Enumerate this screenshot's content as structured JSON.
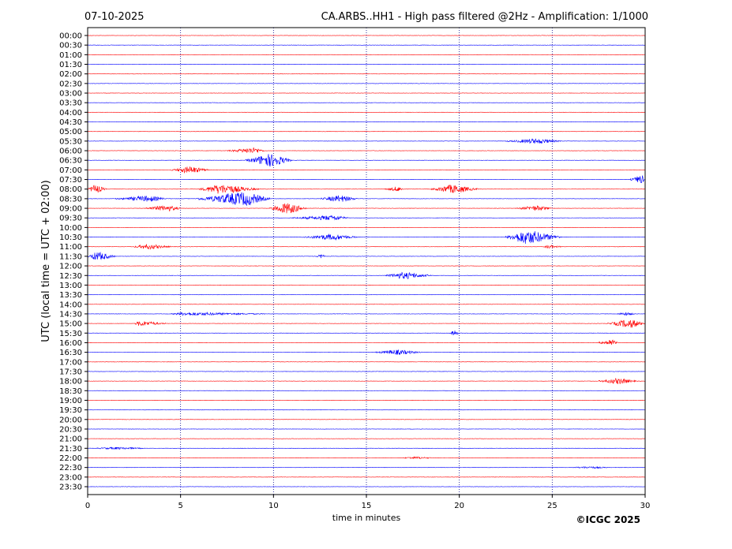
{
  "header": {
    "date": "07-10-2025",
    "title": "CA.ARBS..HH1 - High pass filtered @2Hz - Amplification: 1/1000"
  },
  "footer": {
    "copyright": "©ICGC 2025"
  },
  "colors": {
    "odd_trace": "#ff0000",
    "even_trace": "#0000ff",
    "grid": "#00008b",
    "frame": "#000000"
  },
  "chart_data": {
    "type": "line",
    "title": "CA.ARBS..HH1 - High pass filtered @2Hz - Amplification: 1/1000",
    "xlabel": "time in minutes",
    "ylabel": "UTC (local time = UTC + 02:00)",
    "xlim": [
      0,
      30
    ],
    "x_ticks": [
      0,
      5,
      10,
      15,
      20,
      25,
      30
    ],
    "x_tick_labels": [
      "0",
      "5",
      "10",
      "15",
      "20",
      "25",
      "30"
    ],
    "vertical_gridlines": [
      5,
      10,
      15,
      20,
      25
    ],
    "row_labels": [
      "00:00",
      "00:30",
      "01:00",
      "01:30",
      "02:00",
      "02:30",
      "03:00",
      "03:30",
      "04:00",
      "04:30",
      "05:00",
      "05:30",
      "06:00",
      "06:30",
      "07:00",
      "07:30",
      "08:00",
      "08:30",
      "09:00",
      "09:30",
      "10:00",
      "10:30",
      "11:00",
      "11:30",
      "12:00",
      "12:30",
      "13:00",
      "13:30",
      "14:00",
      "14:30",
      "15:00",
      "15:30",
      "16:00",
      "16:30",
      "17:00",
      "17:30",
      "18:00",
      "18:30",
      "19:00",
      "19:30",
      "20:00",
      "20:30",
      "21:00",
      "21:30",
      "22:00",
      "22:30",
      "23:00",
      "23:30"
    ],
    "row_colors": [
      "#ff0000",
      "#0000ff"
    ],
    "events": [
      {
        "row": 11,
        "start": 22.5,
        "end": 25.5,
        "peak": 24.2,
        "amp": 0.25
      },
      {
        "row": 12,
        "start": 7.5,
        "end": 9.5,
        "peak": 9.0,
        "amp": 0.3
      },
      {
        "row": 13,
        "start": 8.5,
        "end": 11.0,
        "peak": 9.8,
        "amp": 0.7
      },
      {
        "row": 14,
        "start": 4.5,
        "end": 6.5,
        "peak": 5.5,
        "amp": 0.35
      },
      {
        "row": 15,
        "start": 29.2,
        "end": 30.0,
        "peak": 29.8,
        "amp": 0.45
      },
      {
        "row": 16,
        "start": 0.0,
        "end": 1.0,
        "peak": 0.4,
        "amp": 0.45
      },
      {
        "row": 16,
        "start": 6.0,
        "end": 9.2,
        "peak": 7.1,
        "amp": 0.5
      },
      {
        "row": 16,
        "start": 16.0,
        "end": 17.0,
        "peak": 16.7,
        "amp": 0.25
      },
      {
        "row": 16,
        "start": 18.5,
        "end": 21.0,
        "peak": 19.6,
        "amp": 0.45
      },
      {
        "row": 17,
        "start": 1.5,
        "end": 4.2,
        "peak": 3.3,
        "amp": 0.3
      },
      {
        "row": 17,
        "start": 5.8,
        "end": 9.8,
        "peak": 8.5,
        "amp": 0.75
      },
      {
        "row": 17,
        "start": 12.5,
        "end": 14.5,
        "peak": 13.6,
        "amp": 0.35
      },
      {
        "row": 18,
        "start": 3.0,
        "end": 5.0,
        "peak": 4.3,
        "amp": 0.3
      },
      {
        "row": 18,
        "start": 9.8,
        "end": 11.8,
        "peak": 10.7,
        "amp": 0.6
      },
      {
        "row": 18,
        "start": 23.0,
        "end": 25.0,
        "peak": 24.2,
        "amp": 0.25
      },
      {
        "row": 19,
        "start": 11.0,
        "end": 14.0,
        "peak": 13.3,
        "amp": 0.25
      },
      {
        "row": 21,
        "start": 11.5,
        "end": 14.5,
        "peak": 13.2,
        "amp": 0.3
      },
      {
        "row": 21,
        "start": 22.5,
        "end": 25.5,
        "peak": 23.6,
        "amp": 0.75
      },
      {
        "row": 22,
        "start": 2.5,
        "end": 4.5,
        "peak": 3.2,
        "amp": 0.25
      },
      {
        "row": 22,
        "start": 24.5,
        "end": 25.5,
        "peak": 24.8,
        "amp": 0.15
      },
      {
        "row": 23,
        "start": 0.0,
        "end": 1.5,
        "peak": 0.5,
        "amp": 0.45
      },
      {
        "row": 23,
        "start": 12.3,
        "end": 12.8,
        "peak": 12.6,
        "amp": 0.2
      },
      {
        "row": 25,
        "start": 16.0,
        "end": 18.5,
        "peak": 17.0,
        "amp": 0.35
      },
      {
        "row": 29,
        "start": 4.5,
        "end": 9.5,
        "peak": 5.2,
        "amp": 0.15
      },
      {
        "row": 29,
        "start": 28.5,
        "end": 29.5,
        "peak": 28.9,
        "amp": 0.15
      },
      {
        "row": 30,
        "start": 2.5,
        "end": 4.2,
        "peak": 2.8,
        "amp": 0.25
      },
      {
        "row": 30,
        "start": 28.0,
        "end": 30.0,
        "peak": 29.2,
        "amp": 0.45
      },
      {
        "row": 31,
        "start": 19.5,
        "end": 20.0,
        "peak": 19.7,
        "amp": 0.3
      },
      {
        "row": 32,
        "start": 27.5,
        "end": 28.5,
        "peak": 28.2,
        "amp": 0.35
      },
      {
        "row": 33,
        "start": 15.5,
        "end": 18.0,
        "peak": 16.6,
        "amp": 0.25
      },
      {
        "row": 36,
        "start": 27.5,
        "end": 29.5,
        "peak": 28.6,
        "amp": 0.3
      },
      {
        "row": 43,
        "start": 0.5,
        "end": 3.0,
        "peak": 1.5,
        "amp": 0.1
      },
      {
        "row": 44,
        "start": 17.0,
        "end": 18.5,
        "peak": 17.6,
        "amp": 0.1
      },
      {
        "row": 45,
        "start": 26.0,
        "end": 28.0,
        "peak": 27.0,
        "amp": 0.08
      }
    ]
  }
}
